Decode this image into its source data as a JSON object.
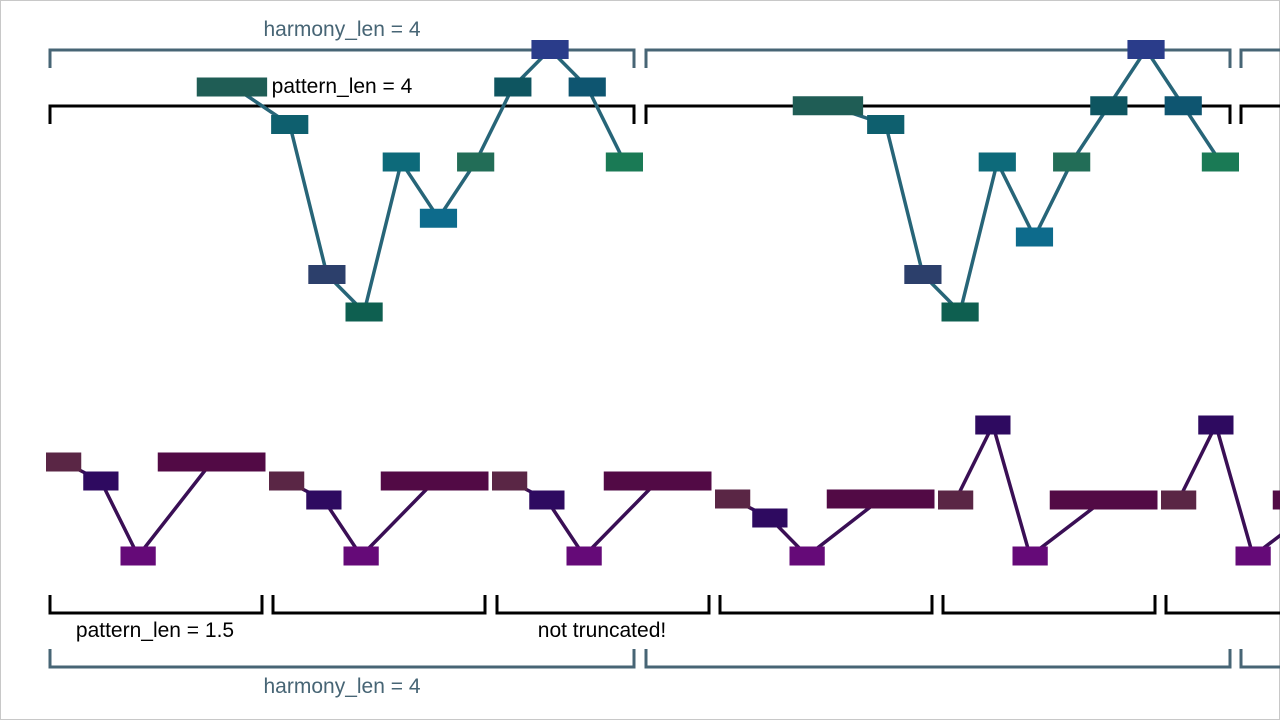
{
  "labels": {
    "harmony_top": "harmony_len = 4",
    "pattern_top": "pattern_len = 4",
    "pattern_bottom": "pattern_len = 1.5",
    "not_truncated": "not truncated!",
    "harmony_bottom": "harmony_len = 4"
  },
  "colors": {
    "harmony_bracket": "#476575",
    "pattern_bracket": "#000000",
    "melody_line": "#276578",
    "pattern_line": "#3a0f55",
    "frame": "#c8c8c8"
  },
  "melody_notes": [
    {
      "onset": 0.5,
      "dur": 0.25,
      "pitch": 4,
      "color": "#1f5d55"
    },
    {
      "onset": 0.75,
      "dur": 0.125,
      "pitch": 3,
      "color": "#0e5f6e"
    },
    {
      "onset": 0.875,
      "dur": 0.125,
      "pitch": -1,
      "color": "#2c3f6b"
    },
    {
      "onset": 1.0,
      "dur": 0.125,
      "pitch": -2,
      "color": "#0e5f50"
    },
    {
      "onset": 1.125,
      "dur": 0.125,
      "pitch": 2,
      "color": "#0d6a7a"
    },
    {
      "onset": 1.25,
      "dur": 0.125,
      "pitch": 0.5,
      "color": "#0d6b8c"
    },
    {
      "onset": 1.375,
      "dur": 0.125,
      "pitch": 2,
      "color": "#226d57"
    },
    {
      "onset": 1.5,
      "dur": 0.125,
      "pitch": 4,
      "color": "#0e5560"
    },
    {
      "onset": 1.625,
      "dur": 0.125,
      "pitch": 5,
      "color": "#2a3c8a"
    },
    {
      "onset": 1.75,
      "dur": 0.125,
      "pitch": 4,
      "color": "#0e5570"
    },
    {
      "onset": 1.875,
      "dur": 0.125,
      "pitch": 2,
      "color": "#1a7a55"
    }
  ],
  "pattern_notes": [
    {
      "onset": 0,
      "dur": 0.125,
      "pitch": 2,
      "color": "#5a2645"
    },
    {
      "onset": 0.125,
      "dur": 0.125,
      "pitch": 1,
      "color": "#2e0a60"
    },
    {
      "onset": 0.25,
      "dur": 0.125,
      "pitch": -1,
      "color": "#650a78"
    },
    {
      "onset": 0.375,
      "dur": 0.375,
      "pitch": 2,
      "color": "#520a45"
    }
  ]
}
